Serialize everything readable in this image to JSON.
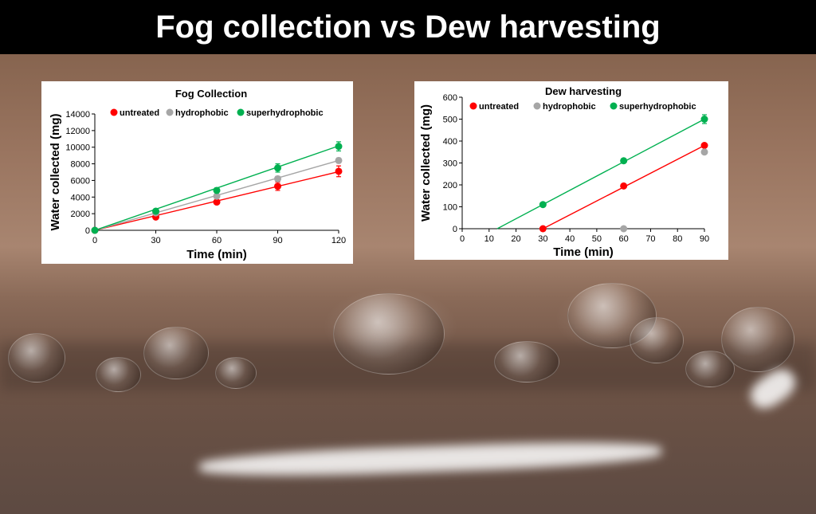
{
  "title": "Fog collection vs Dew harvesting",
  "colors": {
    "untreated": "#ff0000",
    "hydrophobic": "#a6a6a6",
    "superhydrophobic": "#00b050"
  },
  "chart_data": [
    {
      "type": "scatter",
      "title": "Fog Collection",
      "xlabel": "Time (min)",
      "ylabel": "Water collected (mg)",
      "xlim": [
        0,
        120
      ],
      "ylim": [
        0,
        14000
      ],
      "xticks": [
        0,
        30,
        60,
        90,
        120
      ],
      "yticks": [
        0,
        2000,
        4000,
        6000,
        8000,
        10000,
        12000,
        14000
      ],
      "legend_position": "top",
      "grid": false,
      "series": [
        {
          "name": "untreated",
          "color": "#ff0000",
          "x": [
            0,
            30,
            60,
            90,
            120
          ],
          "y": [
            0,
            1600,
            3400,
            5300,
            7100
          ],
          "error": [
            0,
            200,
            250,
            500,
            650
          ],
          "trendline": [
            [
              0,
              0
            ],
            [
              120,
              7050
            ]
          ]
        },
        {
          "name": "hydrophobic",
          "color": "#a6a6a6",
          "x": [
            0,
            30,
            60,
            90,
            120
          ],
          "y": [
            0,
            2100,
            4100,
            6200,
            8400
          ],
          "error": [
            0,
            150,
            200,
            300,
            300
          ],
          "trendline": [
            [
              0,
              0
            ],
            [
              120,
              8400
            ]
          ]
        },
        {
          "name": "superhydrophobic",
          "color": "#00b050",
          "x": [
            0,
            30,
            60,
            90,
            120
          ],
          "y": [
            0,
            2300,
            4800,
            7500,
            10100
          ],
          "error": [
            0,
            250,
            300,
            500,
            550
          ],
          "trendline": [
            [
              0,
              0
            ],
            [
              120,
              10150
            ]
          ]
        }
      ]
    },
    {
      "type": "scatter",
      "title": "Dew harvesting",
      "xlabel": "Time (min)",
      "ylabel": "Water collected (mg)",
      "xlim": [
        0,
        90
      ],
      "ylim": [
        0,
        600
      ],
      "xticks": [
        0,
        10,
        20,
        30,
        40,
        50,
        60,
        70,
        80,
        90
      ],
      "yticks": [
        0,
        100,
        200,
        300,
        400,
        500,
        600
      ],
      "legend_position": "top",
      "grid": false,
      "series": [
        {
          "name": "untreated",
          "color": "#ff0000",
          "x": [
            30,
            60,
            90
          ],
          "y": [
            0,
            195,
            380
          ],
          "error": [
            0,
            0,
            10
          ],
          "trendline": [
            [
              30,
              0
            ],
            [
              90,
              380
            ]
          ]
        },
        {
          "name": "hydrophobic",
          "color": "#a6a6a6",
          "x": [
            60,
            90
          ],
          "y": [
            0,
            350
          ],
          "error": [
            0,
            10
          ],
          "trendline": []
        },
        {
          "name": "superhydrophobic",
          "color": "#00b050",
          "x": [
            30,
            60,
            90
          ],
          "y": [
            110,
            310,
            500
          ],
          "error": [
            0,
            0,
            20
          ],
          "trendline": [
            [
              13,
              0
            ],
            [
              90,
              500
            ]
          ]
        }
      ]
    }
  ]
}
